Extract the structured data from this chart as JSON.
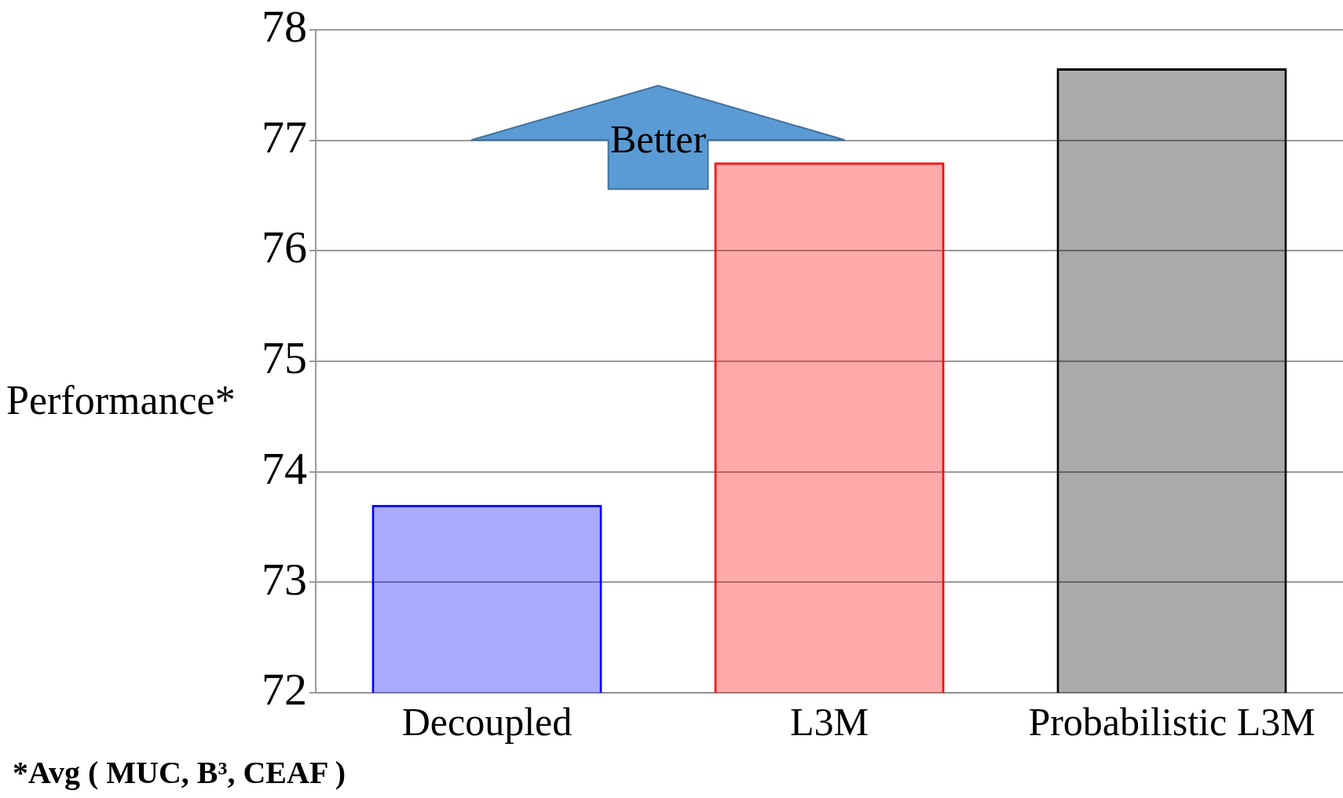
{
  "chart_data": {
    "type": "bar",
    "ylabel": "Performance*",
    "categories": [
      "Decoupled",
      "L3M",
      "Probabilistic L3M"
    ],
    "values": [
      73.7,
      76.8,
      77.65
    ],
    "colors": [
      "#0000ff",
      "#ff0000",
      "#000000"
    ],
    "ylim": [
      72,
      78
    ],
    "yticks": [
      72,
      73,
      74,
      75,
      76,
      77,
      78
    ],
    "grid": "y",
    "annotations": [
      "Better",
      "*Avg ( MUC, B³, CEAF )"
    ]
  }
}
